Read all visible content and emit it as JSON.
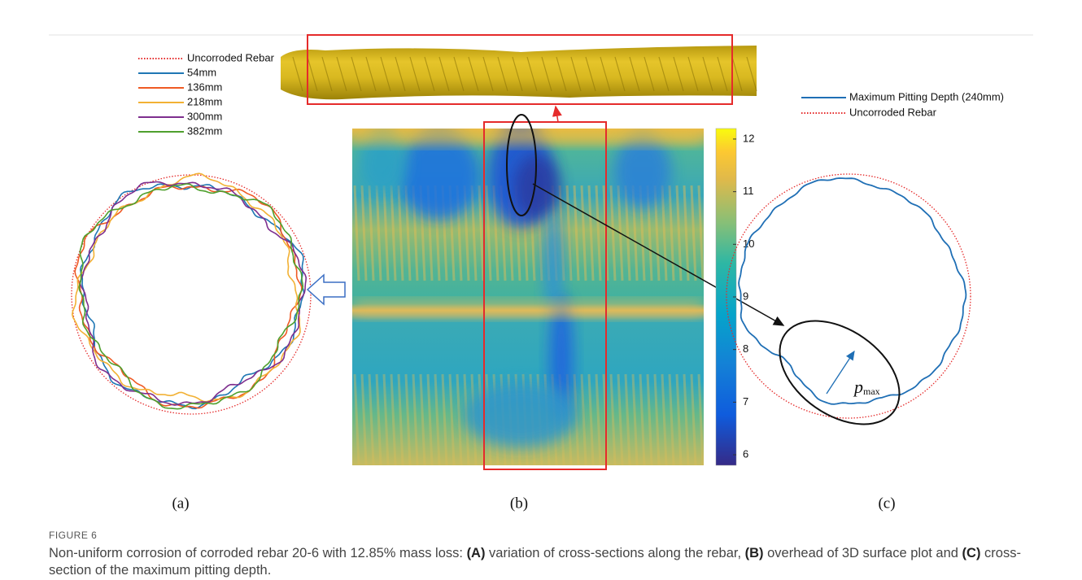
{
  "figure": {
    "panel_a": {
      "legend": [
        "Uncorroded Rebar",
        "54mm",
        "136mm",
        "218mm",
        "300mm",
        "382mm"
      ],
      "label": "(a)"
    },
    "panel_b": {
      "colorbar": {
        "lim": [
          5.8,
          12.2
        ],
        "ticks": [
          12,
          11,
          10,
          9,
          8,
          7,
          6
        ]
      },
      "label": "(b)"
    },
    "panel_c": {
      "legend": [
        "Maximum Pitting Depth (240mm)",
        "Uncorroded Rebar"
      ],
      "annotation": {
        "symbol": "p",
        "subscript": "max"
      },
      "label": "(c)"
    }
  },
  "caption": {
    "number": "FIGURE 6",
    "parts": [
      "Non-uniform corrosion of corroded rebar 20-6 with 12.85% mass loss: ",
      "(A)",
      " variation of cross-sections along the rebar, ",
      "(B)",
      " overhead of 3D surface plot and ",
      "(C)",
      " cross-section of the maximum pitting depth."
    ]
  }
}
